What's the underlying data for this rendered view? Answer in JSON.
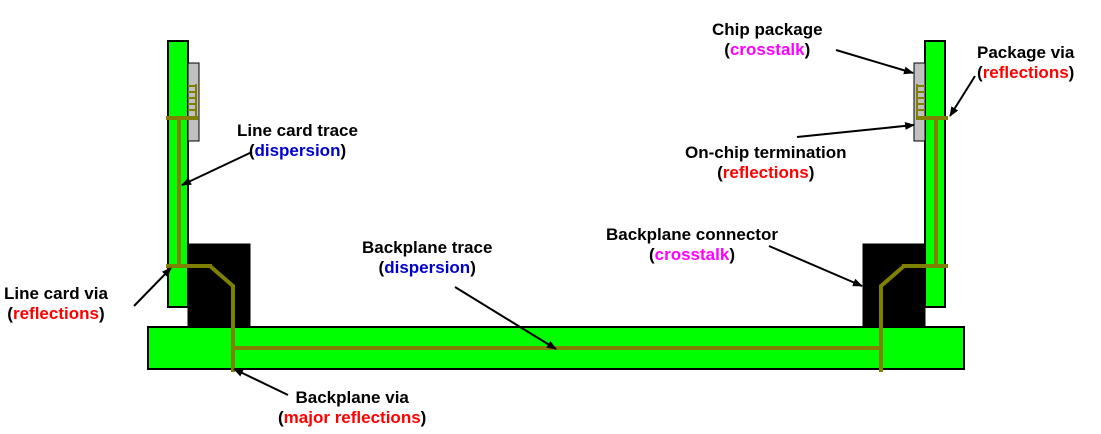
{
  "colors": {
    "board": "#00ff00",
    "trace": "#808000",
    "connector": "#000000",
    "package": "#c0c0c0",
    "dispersion": "#0000cc",
    "reflections": "#ff0000",
    "crosstalk": "#ff00ff"
  },
  "labels": {
    "line_card_trace": {
      "title": "Line card trace",
      "effect": "dispersion"
    },
    "backplane_trace": {
      "title": "Backplane trace",
      "effect": "dispersion"
    },
    "line_card_via": {
      "title": "Line card via",
      "effect": "reflections"
    },
    "backplane_via": {
      "title": "Backplane via",
      "effect": "major reflections"
    },
    "chip_package": {
      "title": "Chip package",
      "effect": "crosstalk"
    },
    "package_via": {
      "title": "Package via",
      "effect": "reflections"
    },
    "on_chip_termination": {
      "title": "On-chip termination",
      "effect": "reflections"
    },
    "backplane_connector": {
      "title": "Backplane connector",
      "effect": "crosstalk"
    }
  },
  "paren_open": "(",
  "paren_close": ")"
}
